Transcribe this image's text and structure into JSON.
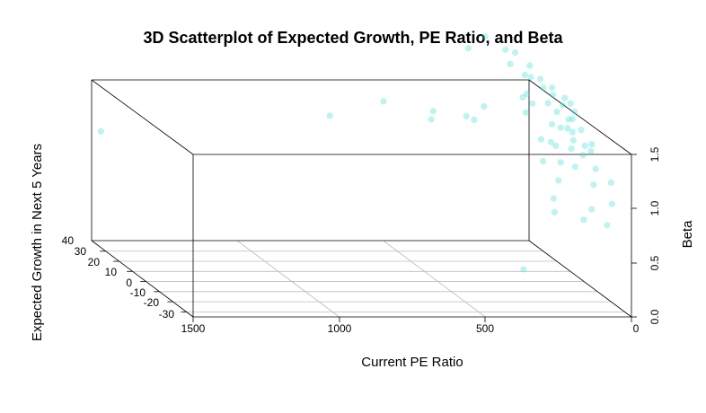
{
  "chart_data": {
    "type": "scatter",
    "title": "3D Scatterplot of Expected Growth, PE Ratio, and Beta",
    "x_axis": {
      "label": "Current PE Ratio",
      "range": [
        0,
        1500
      ],
      "reversed": true,
      "ticks": [
        "1500",
        "1000",
        "500",
        "0"
      ]
    },
    "y_axis": {
      "label": "Expected Growth in Next 5 Years",
      "range": [
        -35,
        40
      ],
      "ticks": [
        "40",
        "30",
        "20",
        "10",
        "0",
        "-10",
        "-20",
        "-30"
      ]
    },
    "z_axis": {
      "label": "Beta",
      "range": [
        0,
        1.5
      ],
      "ticks": [
        "0.0",
        "0.5",
        "1.0",
        "1.5"
      ]
    },
    "grid": "x-y floor only",
    "color": "#40e0d0",
    "points": [
      {
        "pe": 1700,
        "growth": -10,
        "beta": 1.48
      },
      {
        "pe": 870,
        "growth": 0,
        "beta": 1.53
      },
      {
        "pe": 640,
        "growth": 10,
        "beta": 1.57
      },
      {
        "pe": 500,
        "growth": 5,
        "beta": 1.45
      },
      {
        "pe": 470,
        "growth": 10,
        "beta": 1.48
      },
      {
        "pe": 380,
        "growth": 5,
        "beta": 1.48
      },
      {
        "pe": 330,
        "growth": 10,
        "beta": 1.4
      },
      {
        "pe": 250,
        "growth": 20,
        "beta": 1.43
      },
      {
        "pe": 130,
        "growth": 15,
        "beta": 1.42
      },
      {
        "pe": 280,
        "growth": 25,
        "beta": 1.92
      },
      {
        "pe": 200,
        "growth": 30,
        "beta": 1.98
      },
      {
        "pe": 160,
        "growth": 20,
        "beta": 1.82
      },
      {
        "pe": 120,
        "growth": 25,
        "beta": 1.88
      },
      {
        "pe": 150,
        "growth": 10,
        "beta": 1.64
      },
      {
        "pe": 80,
        "growth": 15,
        "beta": 1.73
      },
      {
        "pe": 60,
        "growth": 10,
        "beta": 1.63
      },
      {
        "pe": 100,
        "growth": 5,
        "beta": 1.6
      },
      {
        "pe": 130,
        "growth": 30,
        "beta": 1.86
      },
      {
        "pe": 90,
        "growth": 20,
        "beta": 1.7
      },
      {
        "pe": 70,
        "growth": 25,
        "beta": 1.76
      },
      {
        "pe": 40,
        "growth": 15,
        "beta": 1.65
      },
      {
        "pe": 50,
        "growth": 5,
        "beta": 1.58
      },
      {
        "pe": 20,
        "growth": 10,
        "beta": 1.6
      },
      {
        "pe": 10,
        "growth": 5,
        "beta": 1.52
      },
      {
        "pe": 110,
        "growth": 0,
        "beta": 1.45
      },
      {
        "pe": 140,
        "growth": 15,
        "beta": 1.56
      },
      {
        "pe": 80,
        "growth": 0,
        "beta": 1.42
      },
      {
        "pe": 40,
        "growth": 0,
        "beta": 1.38
      },
      {
        "pe": 30,
        "growth": 5,
        "beta": 1.45
      },
      {
        "pe": 60,
        "growth": -5,
        "beta": 1.35
      },
      {
        "pe": 10,
        "growth": 0,
        "beta": 1.4
      },
      {
        "pe": 120,
        "growth": -5,
        "beta": 1.3
      },
      {
        "pe": 90,
        "growth": -10,
        "beta": 1.32
      },
      {
        "pe": 50,
        "growth": -10,
        "beta": 1.26
      },
      {
        "pe": 20,
        "growth": -5,
        "beta": 1.3
      },
      {
        "pe": 0,
        "growth": -5,
        "beta": 1.25
      },
      {
        "pe": 170,
        "growth": -5,
        "beta": 1.36
      },
      {
        "pe": 150,
        "growth": -15,
        "beta": 1.24
      },
      {
        "pe": 100,
        "growth": -15,
        "beta": 1.2
      },
      {
        "pe": 30,
        "growth": -15,
        "beta": 1.18
      },
      {
        "pe": 0,
        "growth": -20,
        "beta": 1.1
      },
      {
        "pe": 60,
        "growth": -20,
        "beta": 1.08
      },
      {
        "pe": 180,
        "growth": -20,
        "beta": 1.12
      },
      {
        "pe": 210,
        "growth": -15,
        "beta": 1.25
      },
      {
        "pe": 20,
        "growth": -25,
        "beta": 0.95
      },
      {
        "pe": 90,
        "growth": -25,
        "beta": 0.9
      },
      {
        "pe": 140,
        "growth": -30,
        "beta": 0.85
      },
      {
        "pe": 60,
        "growth": -30,
        "beta": 0.8
      },
      {
        "pe": 220,
        "growth": -25,
        "beta": 1.0
      },
      {
        "pe": 240,
        "growth": -30,
        "beta": 0.92
      },
      {
        "pe": 40,
        "growth": 0,
        "beta": 1.5
      },
      {
        "pe": 70,
        "growth": 5,
        "beta": 1.52
      },
      {
        "pe": 80,
        "growth": -5,
        "beta": 1.46
      },
      {
        "pe": 20,
        "growth": -10,
        "beta": 1.36
      },
      {
        "pe": 130,
        "growth": 10,
        "beta": 1.55
      },
      {
        "pe": 70,
        "growth": 15,
        "beta": 1.65
      },
      {
        "pe": 110,
        "growth": 20,
        "beta": 1.72
      },
      {
        "pe": 0,
        "growth": 10,
        "beta": 1.55
      },
      {
        "pe": 160,
        "growth": -10,
        "beta": 1.38
      },
      {
        "pe": 300,
        "growth": -20,
        "beta": 0.3
      }
    ]
  }
}
